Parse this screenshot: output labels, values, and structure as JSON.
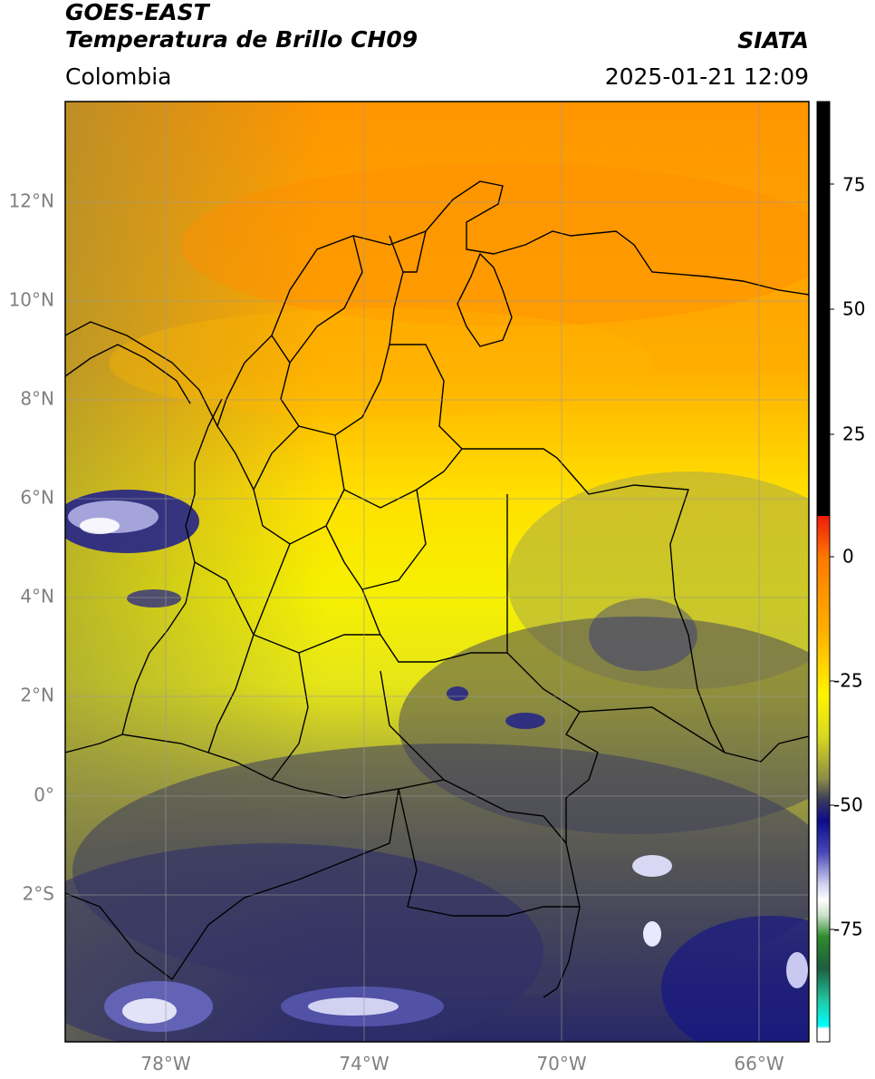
{
  "header": {
    "title_line1": "GOES-EAST",
    "title_line2": "Temperatura de Brillo CH09",
    "region": "Colombia",
    "source": "SIATA",
    "timestamp": "2025-01-21 12:09"
  },
  "map": {
    "lat_labels": [
      "12°N",
      "10°N",
      "8°N",
      "6°N",
      "4°N",
      "2°N",
      "0°",
      "2°S"
    ],
    "lon_labels": [
      "78°W",
      "74°W",
      "70°W",
      "66°W"
    ],
    "gridline_color": "#9a9a9a",
    "border_color": "#000000"
  },
  "colorbar": {
    "tick_labels": [
      "75",
      "50",
      "25",
      "0",
      "-25",
      "-50",
      "-75"
    ],
    "colors": {
      "black": "#000000",
      "red": "#ee1a0a",
      "orange": "#ff9200",
      "yellow": "#fff400",
      "olive": "#9a9a3c",
      "dark_slate": "#3a3a5c",
      "navy": "#0b0b8c",
      "white": "#ffffff",
      "green": "#2e8b2e",
      "teal": "#20c6a0",
      "cyan": "#00ffff"
    }
  }
}
